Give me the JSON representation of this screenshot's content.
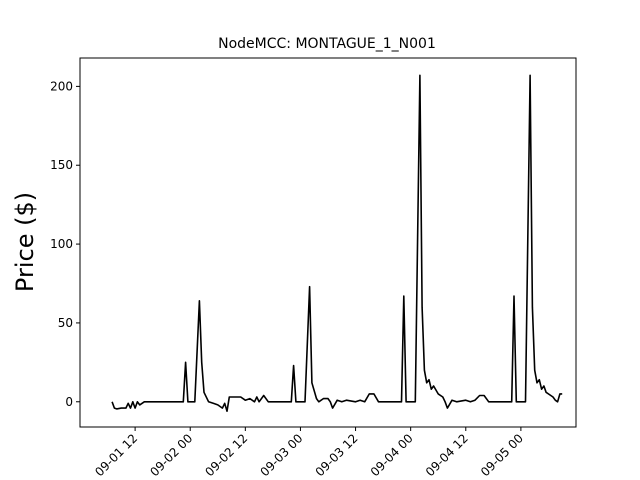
{
  "chart_data": {
    "type": "line",
    "title": "NodeMCC: MONTAGUE_1_N001",
    "xlabel": "",
    "ylabel": "Price ($)",
    "x_unit": "datetime",
    "xlim": [
      "2016-09-01 00:00",
      "2016-09-05 12:00"
    ],
    "ylim": [
      -16,
      218
    ],
    "x_ticks": [
      {
        "label": "09-01 12",
        "value": "2016-09-01 12:00"
      },
      {
        "label": "09-02 00",
        "value": "2016-09-02 00:00"
      },
      {
        "label": "09-02 12",
        "value": "2016-09-02 12:00"
      },
      {
        "label": "09-03 00",
        "value": "2016-09-03 00:00"
      },
      {
        "label": "09-03 12",
        "value": "2016-09-03 12:00"
      },
      {
        "label": "09-04 00",
        "value": "2016-09-04 00:00"
      },
      {
        "label": "09-04 12",
        "value": "2016-09-04 12:00"
      },
      {
        "label": "09-05 00",
        "value": "2016-09-05 00:00"
      }
    ],
    "y_ticks": [
      0,
      50,
      100,
      150,
      200
    ],
    "grid": false,
    "legend": "none",
    "line_color": "#000000",
    "series": [
      {
        "points": [
          [
            "2016-09-01 07:00",
            0
          ],
          [
            "2016-09-01 07:30",
            -4
          ],
          [
            "2016-09-01 08:00",
            -4.5
          ],
          [
            "2016-09-01 09:00",
            -4
          ],
          [
            "2016-09-01 10:00",
            -4
          ],
          [
            "2016-09-01 10:30",
            -1
          ],
          [
            "2016-09-01 11:00",
            -4
          ],
          [
            "2016-09-01 11:30",
            0
          ],
          [
            "2016-09-01 12:00",
            -4
          ],
          [
            "2016-09-01 12:30",
            0
          ],
          [
            "2016-09-01 13:00",
            -2
          ],
          [
            "2016-09-01 14:00",
            0
          ],
          [
            "2016-09-01 18:00",
            0
          ],
          [
            "2016-09-01 22:00",
            0
          ],
          [
            "2016-09-01 22:30",
            0
          ],
          [
            "2016-09-01 23:00",
            25
          ],
          [
            "2016-09-01 23:30",
            0
          ],
          [
            "2016-09-02 01:00",
            0
          ],
          [
            "2016-09-02 02:00",
            64
          ],
          [
            "2016-09-02 02:30",
            25
          ],
          [
            "2016-09-02 03:00",
            6
          ],
          [
            "2016-09-02 04:00",
            0
          ],
          [
            "2016-09-02 05:00",
            -1
          ],
          [
            "2016-09-02 06:00",
            -2
          ],
          [
            "2016-09-02 07:00",
            -4
          ],
          [
            "2016-09-02 07:30",
            -1
          ],
          [
            "2016-09-02 08:00",
            -6
          ],
          [
            "2016-09-02 08:30",
            3
          ],
          [
            "2016-09-02 09:00",
            3
          ],
          [
            "2016-09-02 10:00",
            3
          ],
          [
            "2016-09-02 11:00",
            3
          ],
          [
            "2016-09-02 12:00",
            1
          ],
          [
            "2016-09-02 13:00",
            2
          ],
          [
            "2016-09-02 14:00",
            0
          ],
          [
            "2016-09-02 14:30",
            3
          ],
          [
            "2016-09-02 15:00",
            0
          ],
          [
            "2016-09-02 16:00",
            4
          ],
          [
            "2016-09-02 17:00",
            0
          ],
          [
            "2016-09-02 22:00",
            0
          ],
          [
            "2016-09-02 22:30",
            23
          ],
          [
            "2016-09-02 23:00",
            0
          ],
          [
            "2016-09-03 01:00",
            0
          ],
          [
            "2016-09-03 02:00",
            73
          ],
          [
            "2016-09-03 02:30",
            12
          ],
          [
            "2016-09-03 03:30",
            2
          ],
          [
            "2016-09-03 04:00",
            0
          ],
          [
            "2016-09-03 05:00",
            2
          ],
          [
            "2016-09-03 06:00",
            2
          ],
          [
            "2016-09-03 06:30",
            0
          ],
          [
            "2016-09-03 07:00",
            -4
          ],
          [
            "2016-09-03 08:00",
            1
          ],
          [
            "2016-09-03 09:00",
            0
          ],
          [
            "2016-09-03 10:00",
            1
          ],
          [
            "2016-09-03 12:00",
            0
          ],
          [
            "2016-09-03 13:00",
            1
          ],
          [
            "2016-09-03 14:00",
            0
          ],
          [
            "2016-09-03 15:00",
            5
          ],
          [
            "2016-09-03 16:00",
            5
          ],
          [
            "2016-09-03 17:00",
            0
          ],
          [
            "2016-09-03 22:00",
            0
          ],
          [
            "2016-09-03 22:30",
            67
          ],
          [
            "2016-09-03 23:00",
            0
          ],
          [
            "2016-09-04 01:00",
            0
          ],
          [
            "2016-09-04 02:00",
            207
          ],
          [
            "2016-09-04 02:30",
            60
          ],
          [
            "2016-09-04 03:00",
            20
          ],
          [
            "2016-09-04 03:30",
            12
          ],
          [
            "2016-09-04 04:00",
            14
          ],
          [
            "2016-09-04 04:30",
            8
          ],
          [
            "2016-09-04 05:00",
            10
          ],
          [
            "2016-09-04 06:00",
            5
          ],
          [
            "2016-09-04 07:00",
            3
          ],
          [
            "2016-09-04 07:30",
            0
          ],
          [
            "2016-09-04 08:00",
            -4
          ],
          [
            "2016-09-04 09:00",
            1
          ],
          [
            "2016-09-04 10:00",
            0
          ],
          [
            "2016-09-04 12:00",
            1
          ],
          [
            "2016-09-04 13:00",
            0
          ],
          [
            "2016-09-04 14:00",
            1
          ],
          [
            "2016-09-04 15:00",
            4
          ],
          [
            "2016-09-04 16:00",
            4
          ],
          [
            "2016-09-04 17:00",
            0
          ],
          [
            "2016-09-04 22:00",
            0
          ],
          [
            "2016-09-04 22:30",
            67
          ],
          [
            "2016-09-04 23:00",
            0
          ],
          [
            "2016-09-05 01:00",
            0
          ],
          [
            "2016-09-05 02:00",
            207
          ],
          [
            "2016-09-05 02:30",
            60
          ],
          [
            "2016-09-05 03:00",
            20
          ],
          [
            "2016-09-05 03:30",
            12
          ],
          [
            "2016-09-05 04:00",
            14
          ],
          [
            "2016-09-05 04:30",
            8
          ],
          [
            "2016-09-05 05:00",
            10
          ],
          [
            "2016-09-05 05:30",
            6
          ],
          [
            "2016-09-05 06:00",
            5
          ],
          [
            "2016-09-05 07:00",
            3
          ],
          [
            "2016-09-05 07:30",
            1
          ],
          [
            "2016-09-05 08:00",
            0
          ],
          [
            "2016-09-05 08:30",
            5
          ],
          [
            "2016-09-05 09:00",
            5
          ]
        ]
      }
    ]
  }
}
